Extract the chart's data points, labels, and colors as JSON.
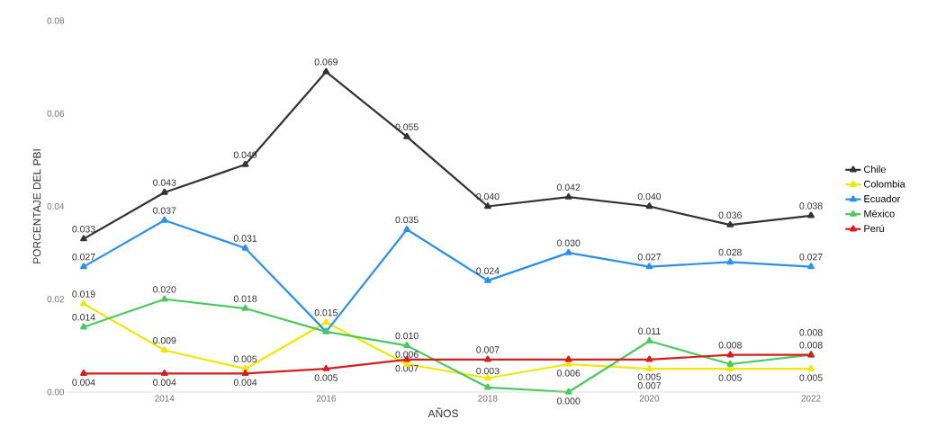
{
  "chart_data": {
    "type": "line",
    "xlabel": "AÑOS",
    "ylabel": "PORCENTAJE DEL PBI",
    "x": [
      2013,
      2014,
      2015,
      2016,
      2017,
      2018,
      2019,
      2020,
      2021,
      2022
    ],
    "xlim": [
      2012.8,
      2022.1
    ],
    "xticks": [
      2014,
      2016,
      2018,
      2020,
      2022
    ],
    "ylim": [
      0,
      0.08
    ],
    "yticks": [
      {
        "value": 0,
        "label": "0.00"
      },
      {
        "value": 0.02,
        "label": "0.02"
      },
      {
        "value": 0.04,
        "label": "0.04"
      },
      {
        "value": 0.06,
        "label": "0.06"
      },
      {
        "value": 0.08,
        "label": "0.08"
      }
    ],
    "marker": "triangle",
    "line_style": "solid",
    "legend": "right",
    "grid": false,
    "series": [
      {
        "name": "Chile",
        "color": "#333333",
        "values": [
          0.033,
          0.043,
          0.049,
          0.069,
          0.055,
          0.04,
          0.042,
          0.04,
          0.036,
          0.038
        ],
        "value_labels": [
          "0.033",
          "0.043",
          "0.049",
          "0.069",
          "0.055",
          "0.040",
          "0.042",
          "0.040",
          "0.036",
          "0.038"
        ]
      },
      {
        "name": "Colombia",
        "color": "#f5e600",
        "values": [
          0.019,
          0.009,
          0.005,
          0.015,
          0.006,
          0.003,
          0.006,
          0.005,
          0.005,
          0.005
        ],
        "value_labels": [
          "0.019",
          "0.009",
          "0.005",
          "0.015",
          "0.006",
          "0.003",
          "0.006",
          "0.005",
          "0.005",
          "0.005"
        ]
      },
      {
        "name": "Ecuador",
        "color": "#2b8ff0",
        "values": [
          0.027,
          0.037,
          0.031,
          0.013,
          0.035,
          0.024,
          0.03,
          0.027,
          0.028,
          0.027
        ],
        "value_labels": [
          "0.027",
          "0.037",
          "0.031",
          null,
          "0.035",
          "0.024",
          "0.030",
          "0.027",
          "0.028",
          "0.027"
        ]
      },
      {
        "name": "México",
        "color": "#4cc95e",
        "values": [
          0.014,
          0.02,
          0.018,
          0.013,
          0.01,
          0.001,
          0.0,
          0.011,
          0.006,
          0.008
        ],
        "value_labels": [
          "0.014",
          "0.020",
          "0.018",
          null,
          "0.010",
          null,
          "0.000",
          "0.011",
          null,
          "0.008"
        ]
      },
      {
        "name": "Perú",
        "color": "#d41f1f",
        "values": [
          0.004,
          0.004,
          0.004,
          0.005,
          0.007,
          0.007,
          0.007,
          0.007,
          0.008,
          0.008
        ],
        "value_labels": [
          "0.004",
          "0.004",
          "0.004",
          "0.005",
          "0.007",
          "0.007",
          null,
          "0.007",
          "0.008",
          "0.008"
        ]
      }
    ]
  }
}
